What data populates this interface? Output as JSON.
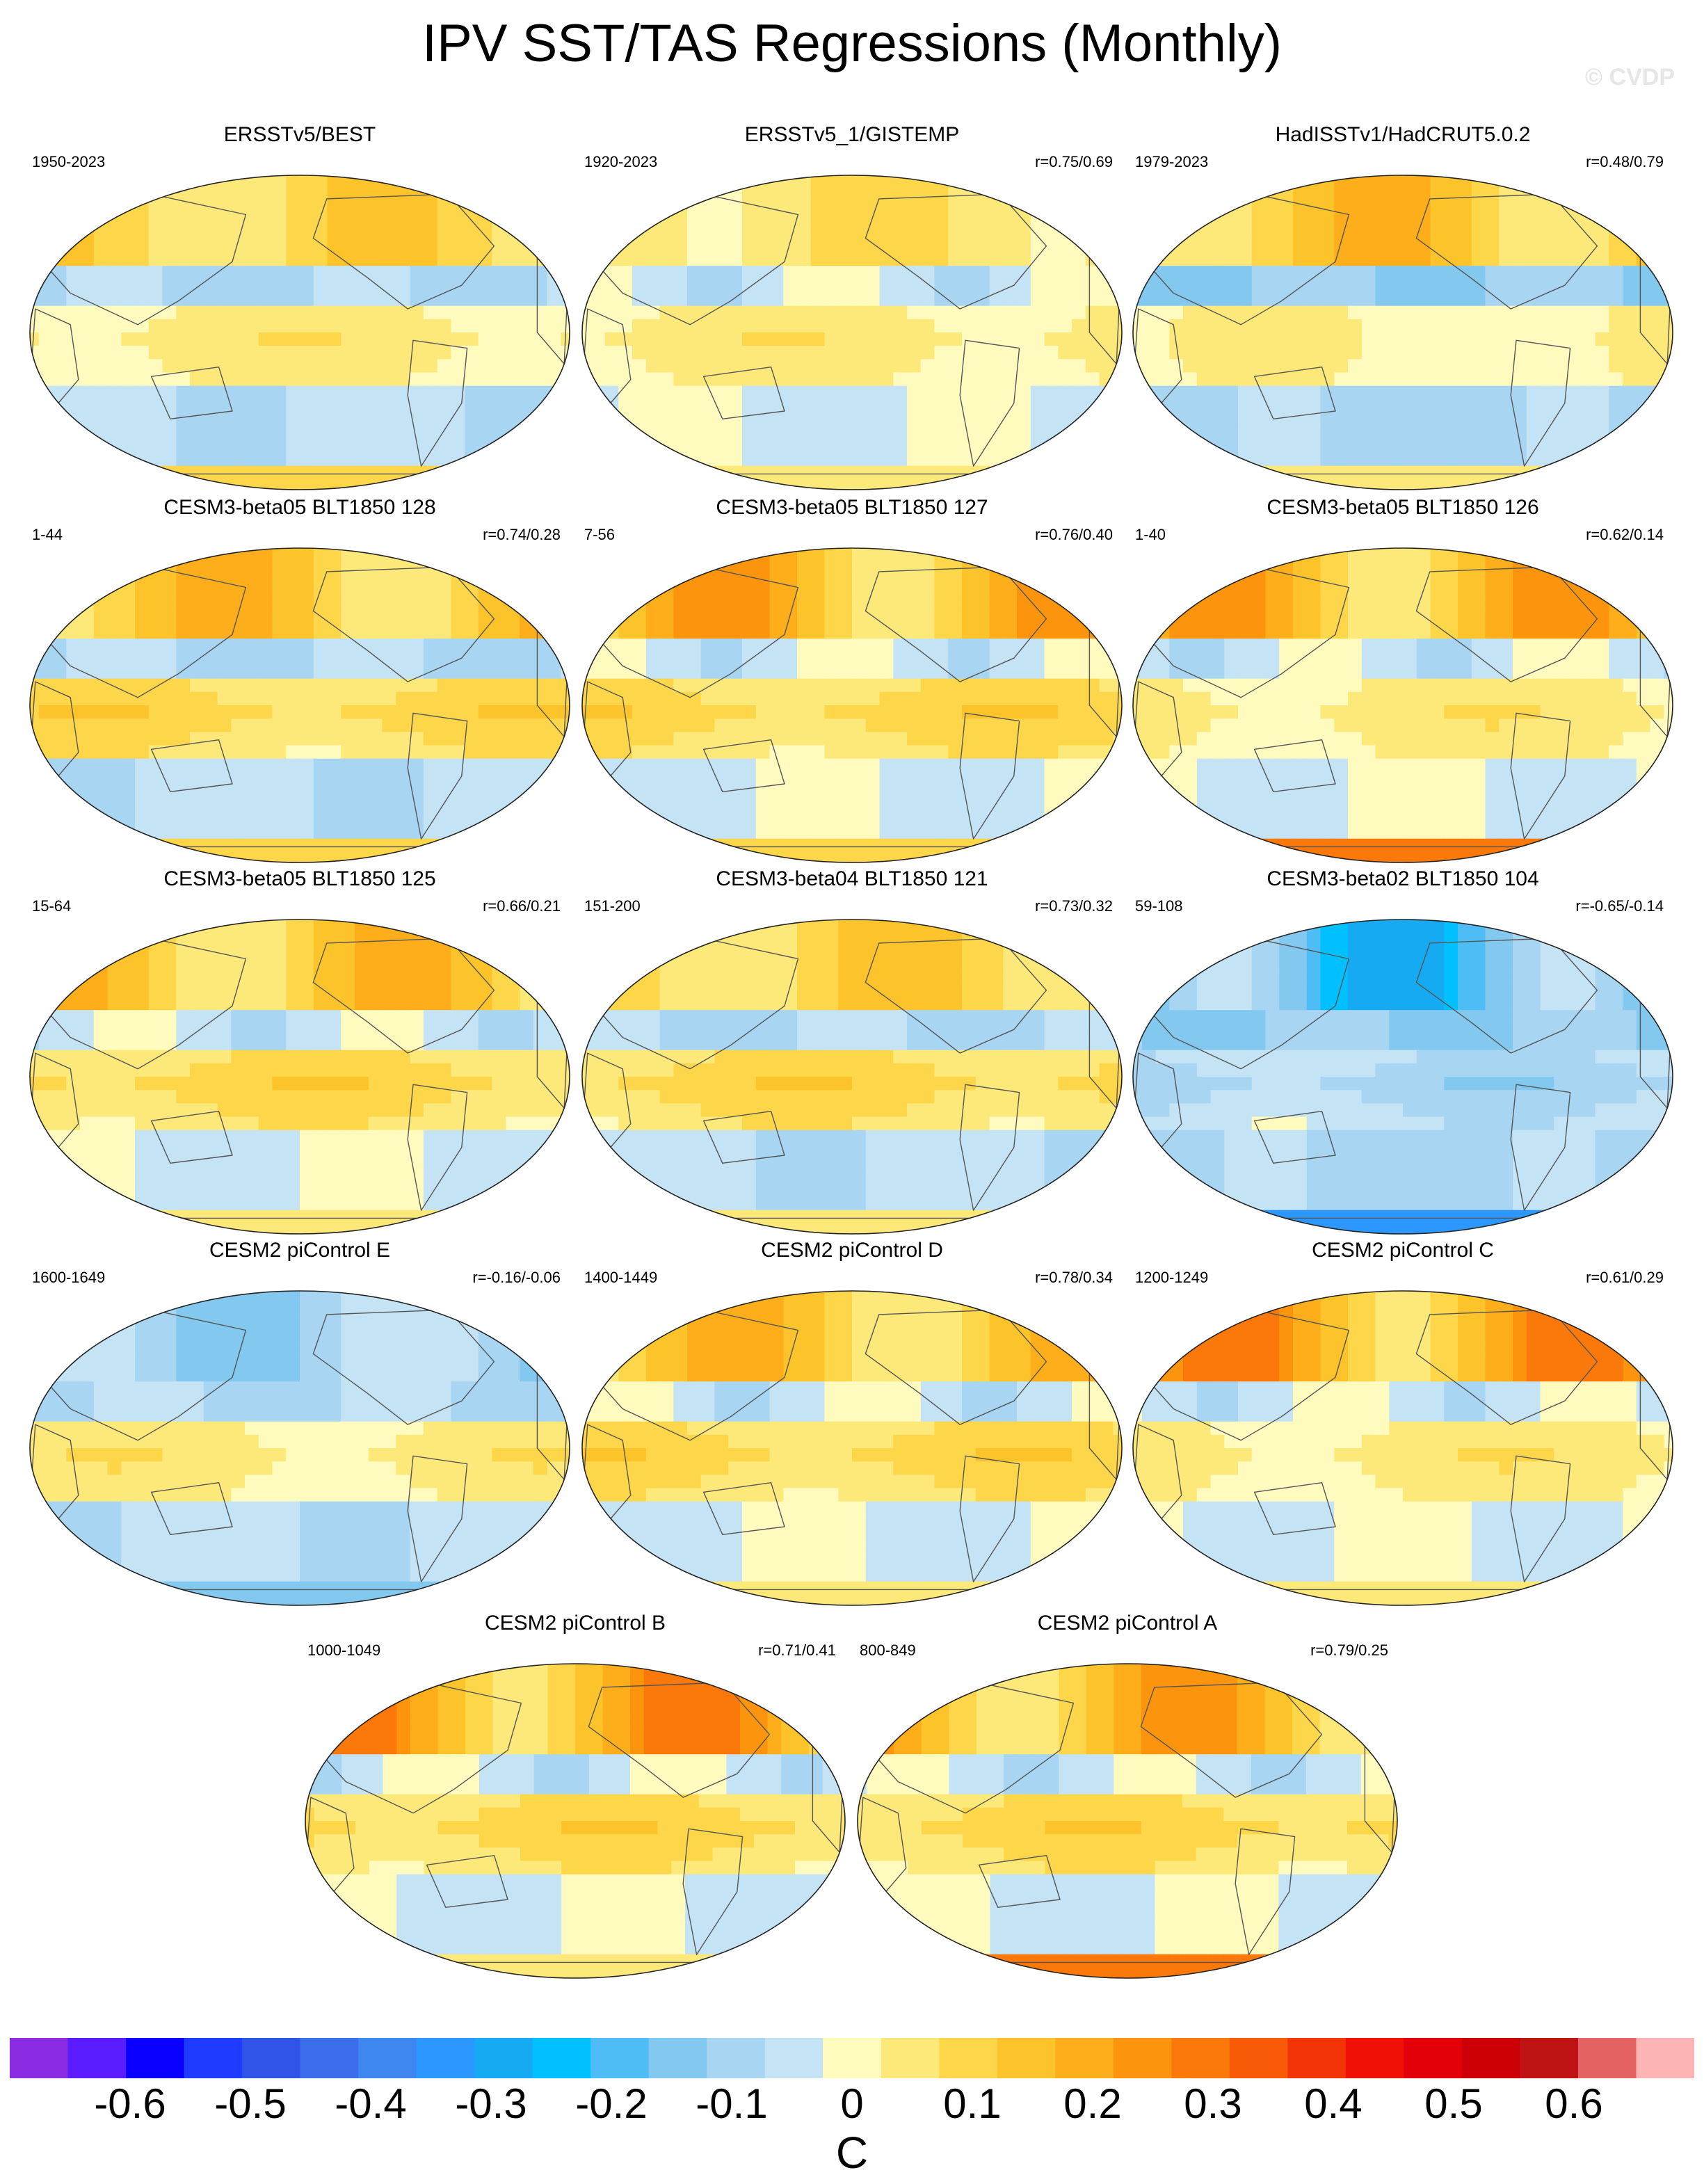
{
  "title": "IPV SST/TAS Regressions (Monthly)",
  "watermark": "© CVDP",
  "chart_data": {
    "type": "heatmap",
    "projection": "global map",
    "colorbar": {
      "unit": "C",
      "ticks": [
        "-0.6",
        "-0.5",
        "-0.4",
        "-0.3",
        "-0.2",
        "-0.1",
        "0",
        "0.1",
        "0.2",
        "0.3",
        "0.4",
        "0.5",
        "0.6"
      ],
      "range": [
        -0.7,
        0.7
      ],
      "colors": [
        "#8b2be2",
        "#5b1cff",
        "#0a00ff",
        "#1f3bff",
        "#3053e8",
        "#3c6eeb",
        "#3e86f0",
        "#2c97ff",
        "#16aaf2",
        "#00c0ff",
        "#4fbdf5",
        "#83c8ef",
        "#a7d5f2",
        "#c4e3f4",
        "#fffbbf",
        "#fde87a",
        "#fdd64a",
        "#fcc32b",
        "#fdae1a",
        "#fc940e",
        "#fb780a",
        "#f85a08",
        "#f33308",
        "#f11005",
        "#e30008",
        "#cc0006",
        "#c01414",
        "#e46262",
        "#fcb4b4"
      ]
    },
    "panels": [
      {
        "title": "ERSSTv5/BEST",
        "period": "1950-2023",
        "corr": "",
        "pattern": [
          0.15,
          0.05,
          -0.1,
          0.1
        ]
      },
      {
        "title": "ERSSTv5_1/GISTEMP",
        "period": "1920-2023",
        "corr": "r=0.75/0.69",
        "pattern": [
          0.1,
          0.05,
          -0.05,
          0.05
        ]
      },
      {
        "title": "HadISSTv1/HadCRUT5.0.2",
        "period": "1979-2023",
        "corr": "r=0.48/0.79",
        "pattern": [
          0.2,
          0.02,
          -0.15,
          0.05
        ]
      },
      {
        "title": "CESM3-beta05 BLT1850 128",
        "period": "1-44",
        "corr": "r=0.74/0.28",
        "pattern": [
          0.2,
          0.1,
          -0.1,
          0.1
        ]
      },
      {
        "title": "CESM3-beta05 BLT1850 127",
        "period": "7-56",
        "corr": "r=0.76/0.40",
        "pattern": [
          0.25,
          0.1,
          -0.05,
          0.1
        ]
      },
      {
        "title": "CESM3-beta05 BLT1850 126",
        "period": "1-40",
        "corr": "r=0.62/0.14",
        "pattern": [
          0.25,
          0.05,
          -0.05,
          0.3
        ]
      },
      {
        "title": "CESM3-beta05 BLT1850 125",
        "period": "15-64",
        "corr": "r=0.66/0.21",
        "pattern": [
          0.2,
          0.1,
          -0.05,
          0.05
        ]
      },
      {
        "title": "CESM3-beta04 BLT1850 121",
        "period": "151-200",
        "corr": "r=0.73/0.32",
        "pattern": [
          0.15,
          0.1,
          -0.1,
          0.05
        ]
      },
      {
        "title": "CESM3-beta02 BLT1850 104",
        "period": "59-108",
        "corr": "r=-0.65/-0.14",
        "pattern": [
          -0.3,
          -0.1,
          -0.15,
          -0.35
        ]
      },
      {
        "title": "CESM2 piControl E",
        "period": "1600-1649",
        "corr": "r=-0.16/-0.06",
        "pattern": [
          -0.15,
          0.05,
          -0.1,
          -0.15
        ]
      },
      {
        "title": "CESM2 piControl D",
        "period": "1400-1449",
        "corr": "r=0.78/0.34",
        "pattern": [
          0.2,
          0.1,
          -0.05,
          0.05
        ]
      },
      {
        "title": "CESM2 piControl C",
        "period": "1200-1249",
        "corr": "r=0.61/0.29",
        "pattern": [
          0.3,
          0.05,
          -0.05,
          0.05
        ]
      },
      {
        "title": "CESM2 piControl B",
        "period": "1000-1049",
        "corr": "r=0.71/0.41",
        "pattern": [
          0.3,
          0.1,
          -0.05,
          0.05
        ]
      },
      {
        "title": "CESM2 piControl A",
        "period": "800-849",
        "corr": "r=0.79/0.25",
        "pattern": [
          0.25,
          0.1,
          -0.05,
          0.3
        ]
      }
    ]
  }
}
